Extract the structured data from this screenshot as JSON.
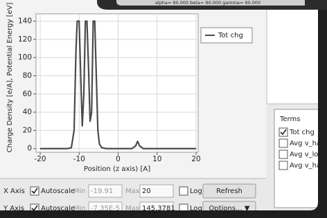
{
  "header": {
    "text": "alpha= 90.000 beta= 90.000 gamma= 90.000"
  },
  "chart_data": {
    "type": "line",
    "xlabel": "Position (z axis) [A]",
    "ylabel": "Charge Density [e/A], Potential Energy [eV]",
    "x": [
      -20,
      -13,
      -12,
      -11.3,
      -10.8,
      -10.5,
      -10.0,
      -9.6,
      -9.2,
      -8.8,
      -8.4,
      -8.0,
      -7.6,
      -7.2,
      -6.8,
      -6.4,
      -6.0,
      -5.6,
      -5.2,
      -4.8,
      -4.2,
      -3,
      3.5,
      4.5,
      5,
      5.5,
      6.5,
      20
    ],
    "series": [
      {
        "name": "Tot chg",
        "color": "#4a4a4a",
        "values": [
          0,
          0,
          1,
          20,
          110,
          140,
          140,
          80,
          25,
          60,
          140,
          140,
          90,
          30,
          40,
          140,
          140,
          80,
          20,
          5,
          1,
          0,
          0,
          3,
          8,
          3,
          0,
          0
        ]
      }
    ],
    "xlim": [
      -20,
      20
    ],
    "ylim": [
      -4,
      148
    ],
    "xticks": [
      -20,
      -10,
      0,
      10,
      20
    ],
    "yticks": [
      0,
      20,
      40,
      60,
      80,
      100,
      120,
      140
    ],
    "grid": true,
    "legend": "upper right"
  },
  "controls": [
    {
      "label": "X Axis",
      "autoscale": {
        "label": "Autoscale",
        "checked": true
      },
      "min": {
        "label": "Min",
        "value": "-19.91"
      },
      "max": {
        "label": "Max",
        "value": "20"
      },
      "log": {
        "label": "Log",
        "checked": false
      },
      "button": "Refresh"
    },
    {
      "label": "Y Axis",
      "autoscale": {
        "label": "Autoscale",
        "checked": true
      },
      "min": {
        "label": "Min",
        "value": "-7.35E-5"
      },
      "max": {
        "label": "Max",
        "value": "145.3781"
      },
      "log": {
        "label": "Log",
        "checked": false
      },
      "button": "Options... ▼"
    }
  ],
  "terms": {
    "title": "Terms",
    "items": [
      {
        "label": "Tot chg",
        "checked": true
      },
      {
        "label": "Avg v_har",
        "checked": false
      },
      {
        "label": "Avg v_loc",
        "checked": false
      },
      {
        "label": "Avg v_har",
        "checked": false
      }
    ]
  }
}
